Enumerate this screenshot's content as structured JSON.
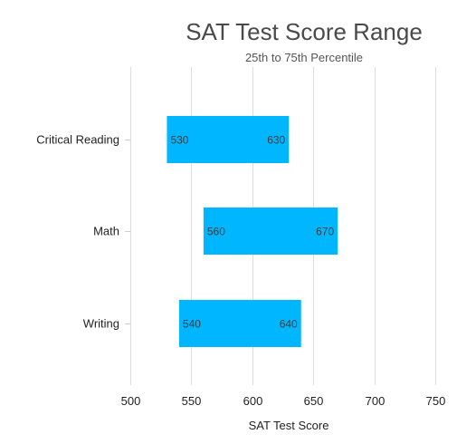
{
  "chart_data": {
    "type": "bar",
    "orientation": "horizontal",
    "title": "SAT Test Score Range",
    "subtitle": "25th to 75th Percentile",
    "xlabel": "SAT Test Score",
    "ylabel": "",
    "xlim": [
      500,
      750
    ],
    "x_ticks": [
      500,
      550,
      600,
      650,
      700,
      750
    ],
    "grid": true,
    "categories": [
      "Critical Reading",
      "Math",
      "Writing"
    ],
    "ranges": [
      {
        "category": "Critical Reading",
        "low": 530,
        "high": 630
      },
      {
        "category": "Math",
        "low": 560,
        "high": 670
      },
      {
        "category": "Writing",
        "low": 540,
        "high": 640
      }
    ],
    "bar_color": "#00b7ff"
  }
}
